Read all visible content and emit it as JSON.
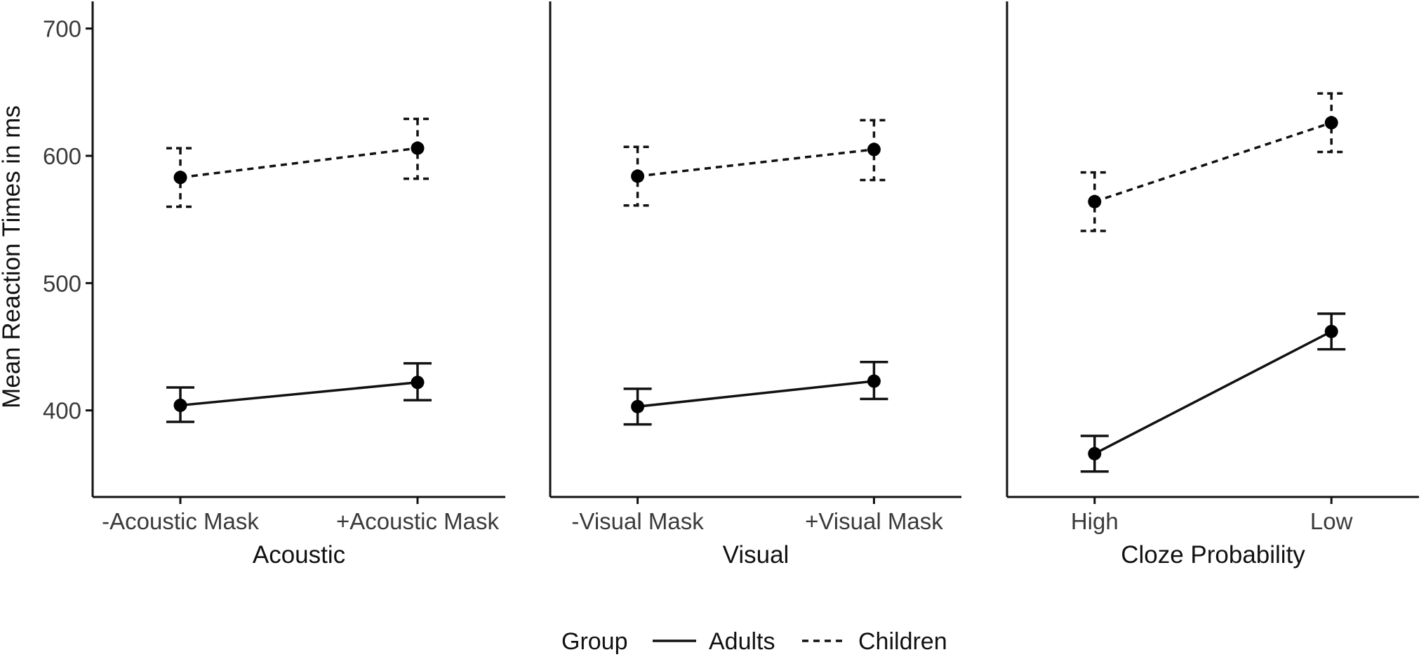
{
  "chart_data": {
    "type": "line",
    "ylabel": "Mean Reaction Times in ms",
    "yticks": [
      400,
      500,
      600,
      700
    ],
    "ylim": [
      332,
      718
    ],
    "grid": false,
    "legend": {
      "position": "bottom",
      "title": "Group",
      "entries": [
        {
          "name": "Adults",
          "linestyle": "solid"
        },
        {
          "name": "Children",
          "linestyle": "dashed"
        }
      ]
    },
    "panels": [
      {
        "xlabel": "Acoustic",
        "categories": [
          "-Acoustic Mask",
          "+Acoustic Mask"
        ],
        "series": [
          {
            "name": "Adults",
            "values": [
              404,
              422
            ],
            "errors_low": [
              391,
              408
            ],
            "errors_high": [
              418,
              437
            ]
          },
          {
            "name": "Children",
            "values": [
              583,
              606
            ],
            "errors_low": [
              560,
              582
            ],
            "errors_high": [
              606,
              629
            ]
          }
        ]
      },
      {
        "xlabel": "Visual",
        "categories": [
          "-Visual Mask",
          "+Visual Mask"
        ],
        "series": [
          {
            "name": "Adults",
            "values": [
              403,
              423
            ],
            "errors_low": [
              389,
              409
            ],
            "errors_high": [
              417,
              438
            ]
          },
          {
            "name": "Children",
            "values": [
              584,
              605
            ],
            "errors_low": [
              561,
              581
            ],
            "errors_high": [
              607,
              628
            ]
          }
        ]
      },
      {
        "xlabel": "Cloze Probability",
        "categories": [
          "High",
          "Low"
        ],
        "series": [
          {
            "name": "Adults",
            "values": [
              366,
              462
            ],
            "errors_low": [
              352,
              448
            ],
            "errors_high": [
              380,
              476
            ]
          },
          {
            "name": "Children",
            "values": [
              564,
              626
            ],
            "errors_low": [
              541,
              603
            ],
            "errors_high": [
              587,
              649
            ]
          }
        ]
      }
    ]
  }
}
